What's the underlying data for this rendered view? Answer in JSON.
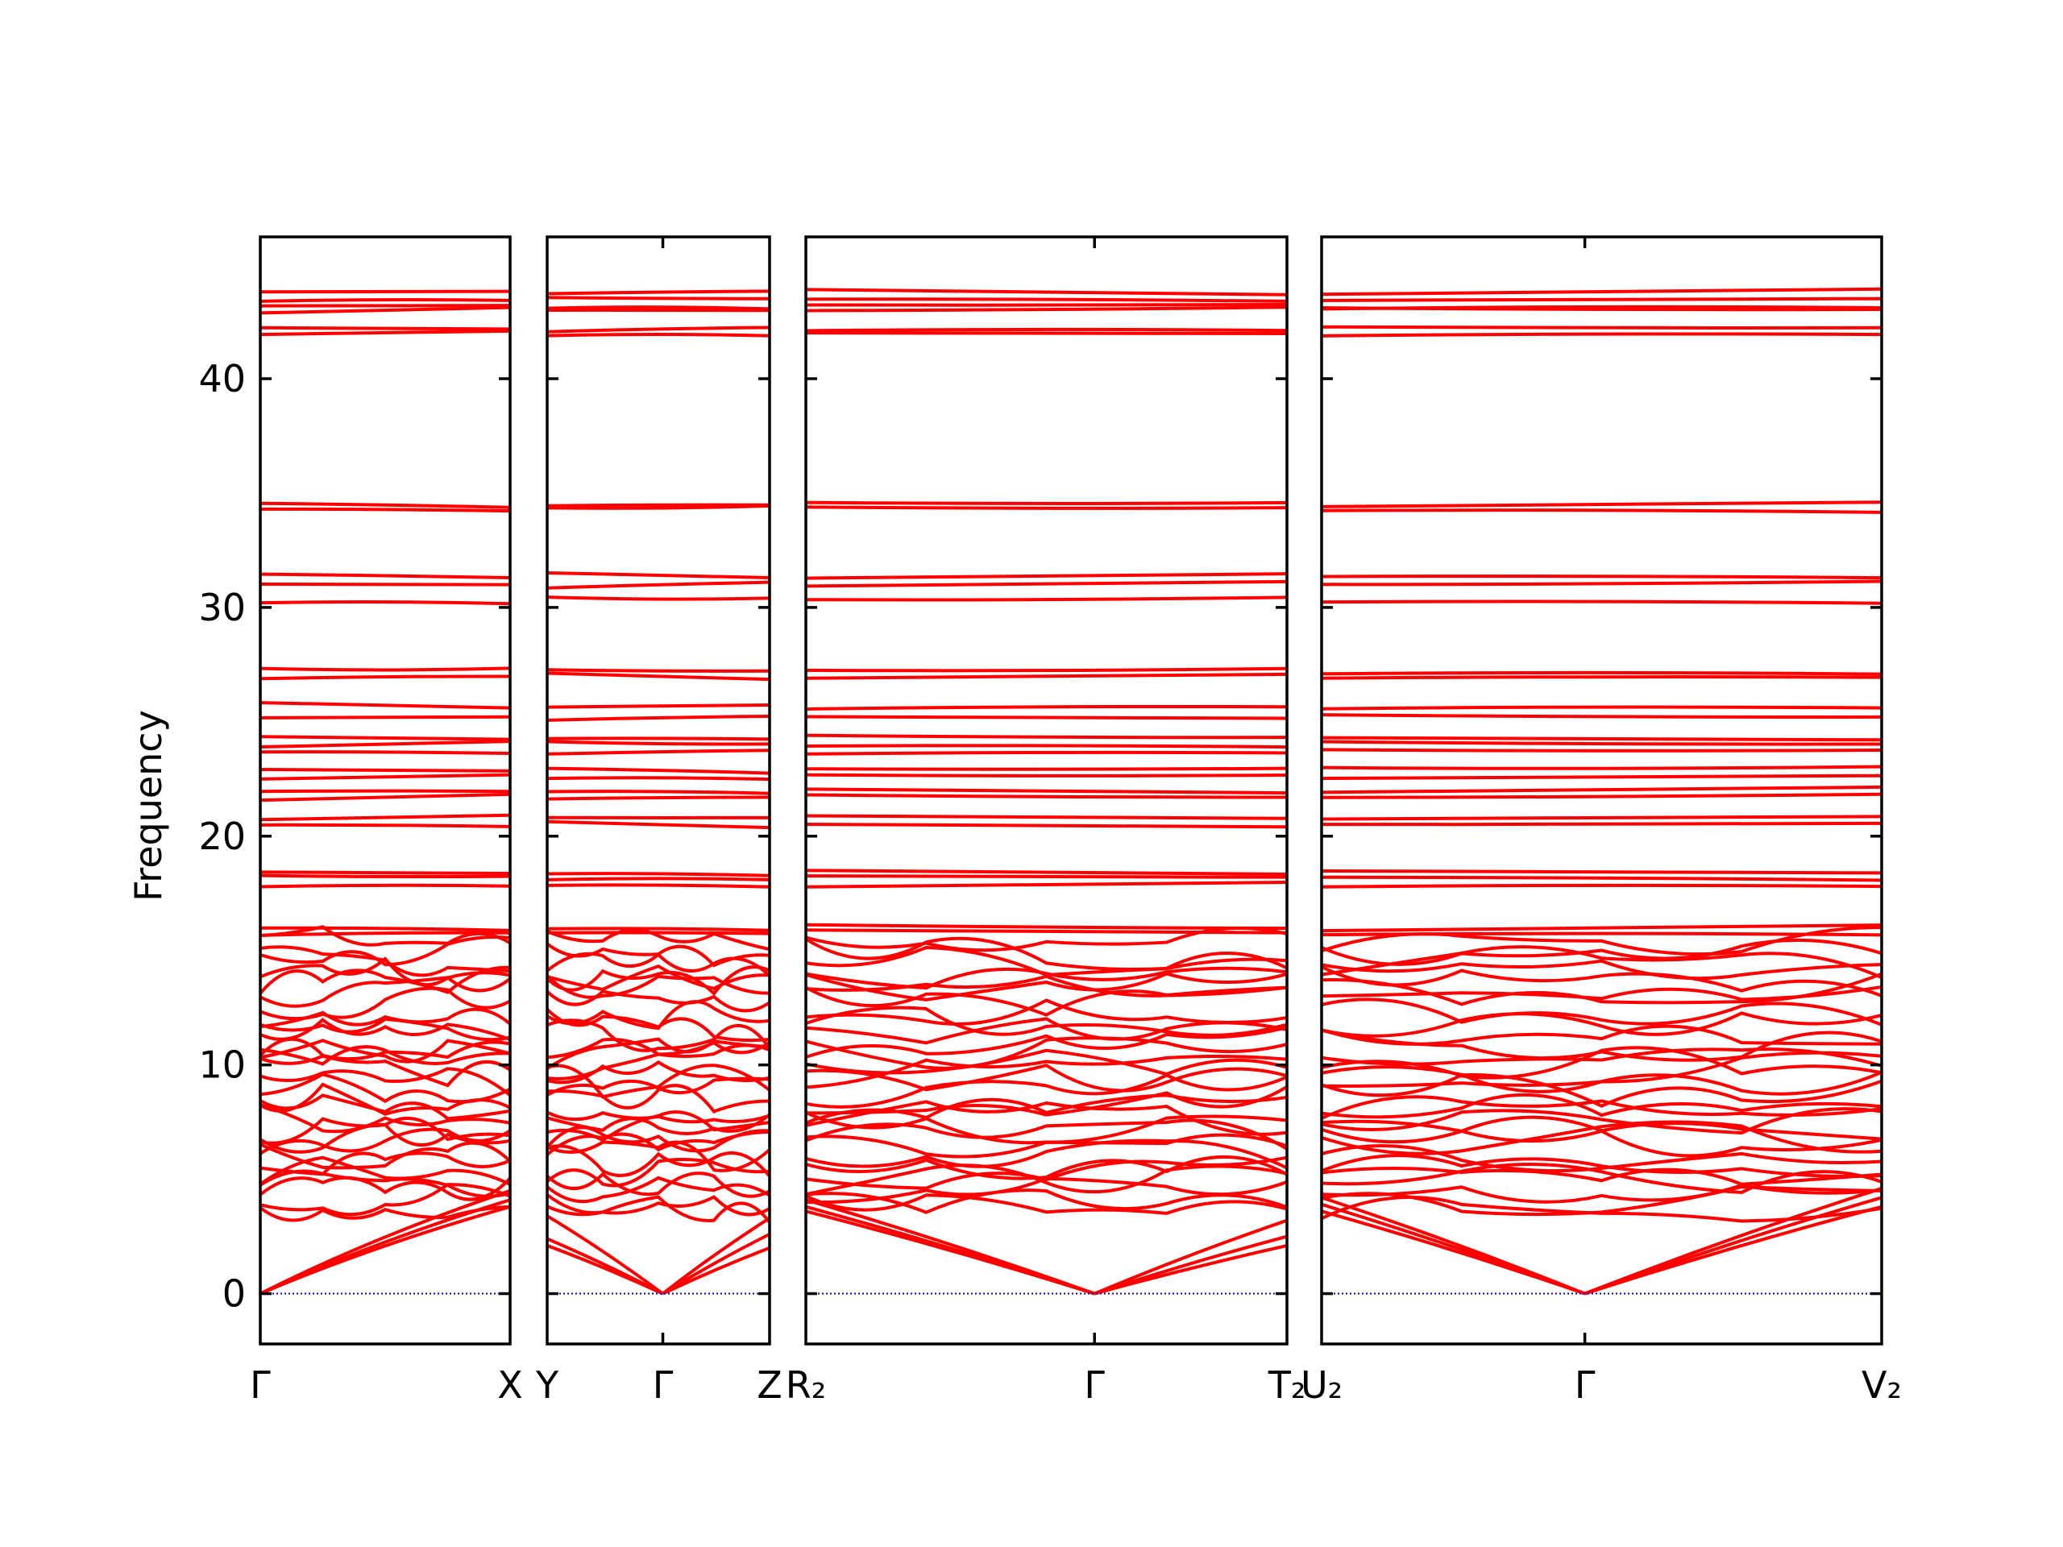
{
  "chart_data": {
    "type": "line",
    "title": "",
    "ylabel": "Frequency",
    "xlabel": "",
    "ylim": [
      -2.2,
      46.2
    ],
    "yticks": [
      0,
      10,
      20,
      30,
      40
    ],
    "line_color": "#ff0000",
    "zero_line_color": "#0000cc",
    "panels": [
      {
        "name": "Γ-X",
        "kpoints": [
          {
            "label": "Γ",
            "pos": 0
          },
          {
            "label": "X",
            "pos": 1
          }
        ]
      },
      {
        "name": "Y-Γ-Z",
        "kpoints": [
          {
            "label": "Y",
            "pos": 0
          },
          {
            "label": "Γ",
            "pos": 0.52
          },
          {
            "label": "Z",
            "pos": 1
          }
        ]
      },
      {
        "name": "R2-Γ-T2",
        "kpoints": [
          {
            "label": "R₂",
            "pos": 0
          },
          {
            "label": "Γ",
            "pos": 0.6
          },
          {
            "label": "T₂",
            "pos": 1
          }
        ]
      },
      {
        "name": "U2-Γ-V2",
        "kpoints": [
          {
            "label": "U₂",
            "pos": 0
          },
          {
            "label": "Γ",
            "pos": 0.47
          },
          {
            "label": "V₂",
            "pos": 1
          }
        ]
      }
    ],
    "flat_bands": [
      43.8,
      43.5,
      43.2,
      43.0,
      42.2,
      42.0,
      34.5,
      34.3,
      31.4,
      31.0,
      30.3,
      27.2,
      27.0,
      25.7,
      25.2,
      24.3,
      24.0,
      23.7,
      22.9,
      22.6,
      22.0,
      21.7,
      20.8,
      20.5,
      18.4,
      18.2,
      17.9,
      16.0,
      15.8
    ],
    "dispersive_bands": [
      15.4,
      14.9,
      14.5,
      14.0,
      13.7,
      13.3,
      12.8,
      12.3,
      11.8,
      11.4,
      11.0,
      10.5,
      10.1,
      9.7,
      9.3,
      8.9,
      8.5,
      8.1,
      7.7,
      7.3,
      6.9,
      6.5,
      6.1,
      5.7,
      5.3,
      4.9,
      4.5,
      4.1,
      3.7
    ],
    "acoustic_branches": {
      "Γ-X": [
        3.8,
        4.1,
        4.5
      ],
      "Y-Γ-Z": [
        {
          "y_start": 2.1,
          "y_end": 2.0
        },
        {
          "y_start": 2.4,
          "y_end": 2.6
        },
        {
          "y_start": 3.4,
          "y_end": 3.3
        }
      ],
      "R2-Γ-T2": [
        {
          "y_start": 3.6,
          "y_end": 2.1
        },
        {
          "y_start": 3.8,
          "y_end": 2.5
        },
        {
          "y_start": 4.1,
          "y_end": 3.2
        }
      ],
      "U2-Γ-V2": [
        {
          "y_start": 3.6,
          "y_end": 3.8
        },
        {
          "y_start": 3.9,
          "y_end": 4.2
        },
        {
          "y_start": 4.2,
          "y_end": 4.6
        }
      ]
    }
  }
}
